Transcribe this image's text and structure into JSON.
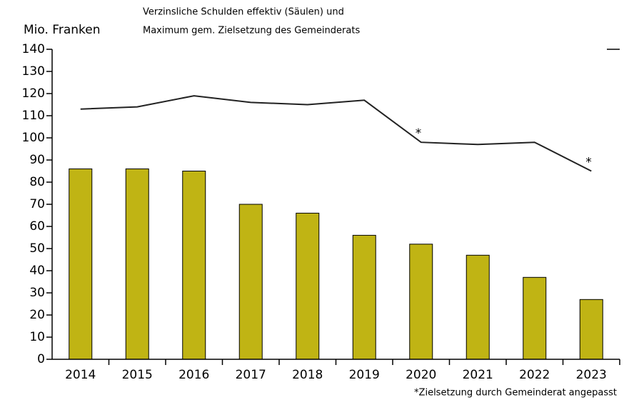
{
  "chart_data": {
    "type": "bar_line",
    "title": [
      "Verzinsliche Schulden effektiv (Säulen) und",
      "Maximum gem. Zielsetzung des Gemeinderats"
    ],
    "y_label": "Mio. Franken",
    "footnote": "*Zielsetzung durch Gemeinderat angepasst",
    "categories": [
      "2014",
      "2015",
      "2016",
      "2017",
      "2018",
      "2019",
      "2020",
      "2021",
      "2022",
      "2023"
    ],
    "series": [
      {
        "type": "bar",
        "color": "#c0b414",
        "values": [
          86,
          86,
          85,
          70,
          66,
          56,
          52,
          47,
          37,
          27
        ]
      },
      {
        "type": "line",
        "color": "#222222",
        "values": [
          113,
          114,
          119,
          116,
          115,
          117,
          98,
          97,
          98,
          85
        ]
      }
    ],
    "annotations": [
      {
        "text": "*",
        "series": 1,
        "index": 6
      },
      {
        "text": "*",
        "series": 1,
        "index": 9
      }
    ],
    "ylim": [
      0,
      140
    ],
    "yticks": [
      0,
      10,
      20,
      30,
      40,
      50,
      60,
      70,
      80,
      90,
      100,
      110,
      120,
      130,
      140
    ]
  }
}
